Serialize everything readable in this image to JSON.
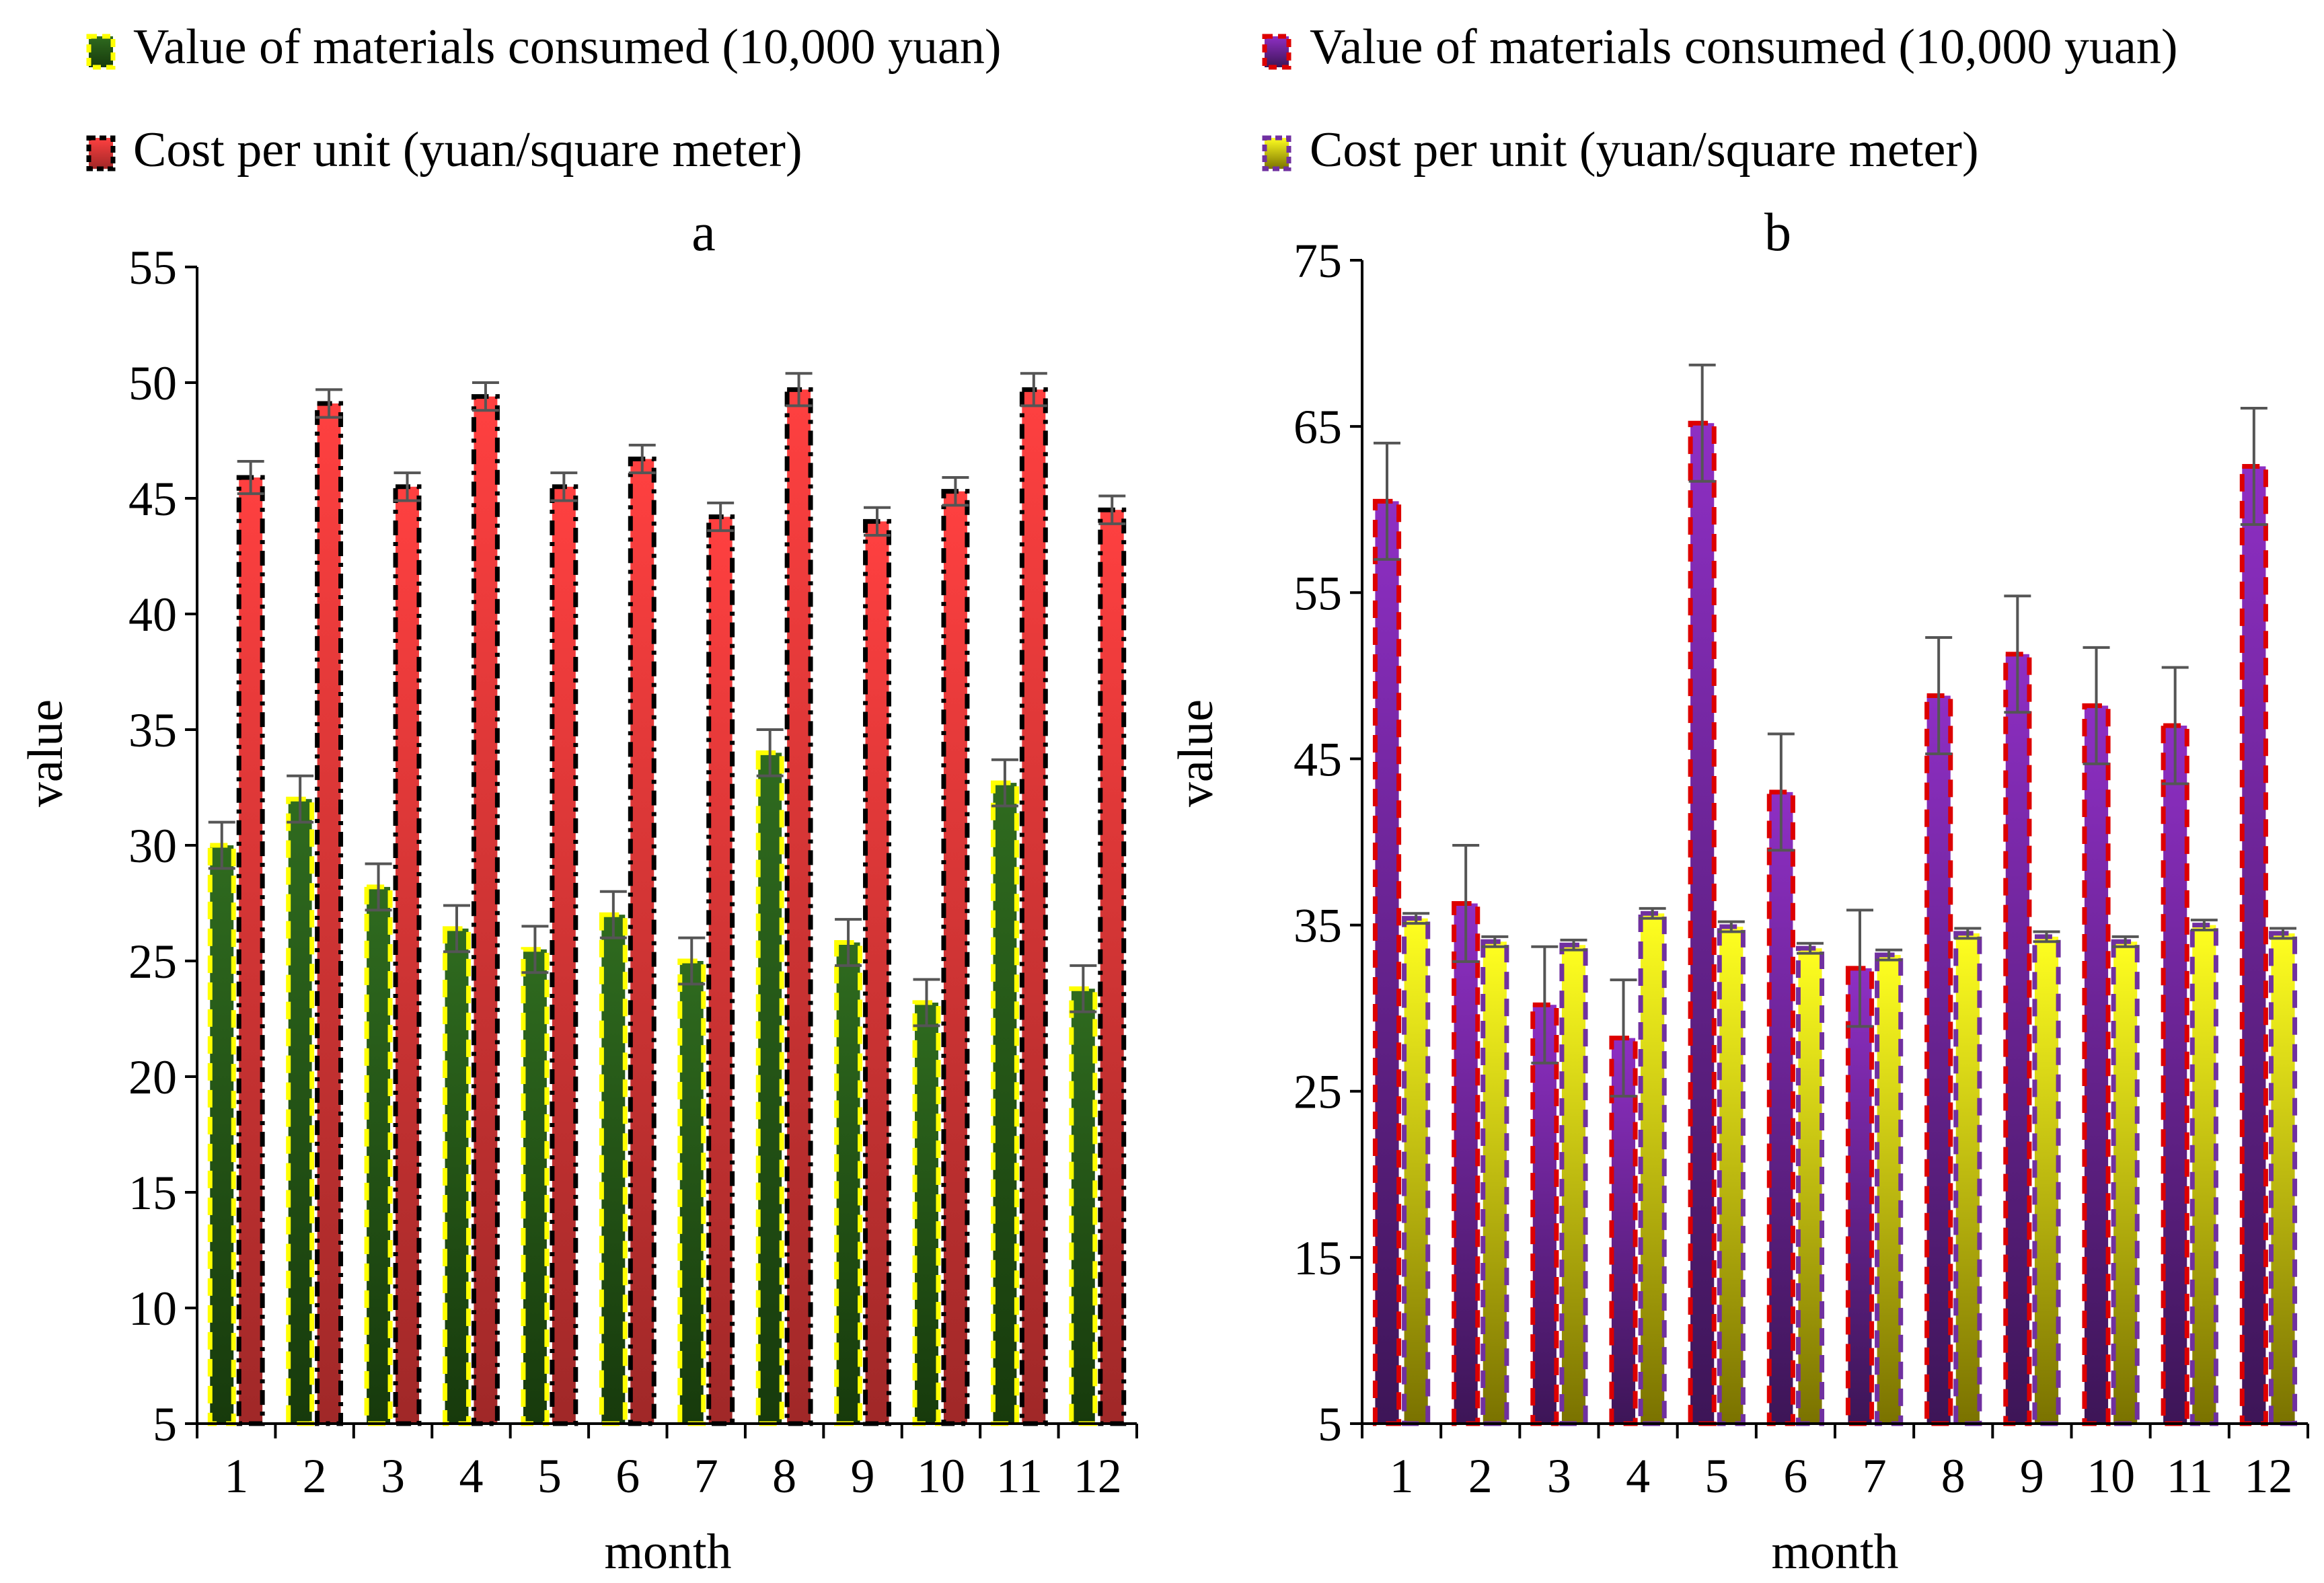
{
  "chart_data": [
    {
      "id": "a",
      "type": "bar",
      "title": "a",
      "xlabel": "month",
      "ylabel": "value",
      "ylim": [
        5,
        55
      ],
      "yticks": [
        5,
        10,
        15,
        20,
        25,
        30,
        35,
        40,
        45,
        50,
        55
      ],
      "categories": [
        "1",
        "2",
        "3",
        "4",
        "5",
        "6",
        "7",
        "8",
        "9",
        "10",
        "11",
        "12"
      ],
      "error_bars": true,
      "series": [
        {
          "name": "Value of materials consumed (10,000 yuan)",
          "values": [
            30.0,
            32.0,
            28.2,
            26.4,
            25.5,
            27.0,
            25.0,
            34.0,
            25.8,
            23.2,
            32.7,
            23.8
          ],
          "errors": [
            1.0,
            1.0,
            1.0,
            1.0,
            1.0,
            1.0,
            1.0,
            1.0,
            1.0,
            1.0,
            1.0,
            1.0
          ],
          "color_top": "#2f6b1f",
          "color_bottom": "#173a0c",
          "border": "#ffff00",
          "border_style": "dash"
        },
        {
          "name": "Cost per unit (yuan/square meter)",
          "values": [
            45.9,
            49.1,
            45.5,
            49.4,
            45.5,
            46.7,
            44.2,
            49.7,
            44.0,
            45.3,
            49.7,
            44.5
          ],
          "errors": [
            0.7,
            0.6,
            0.6,
            0.6,
            0.6,
            0.6,
            0.6,
            0.7,
            0.6,
            0.6,
            0.7,
            0.6
          ],
          "color_top": "#ff4040",
          "color_bottom": "#a02828",
          "border": "#000000",
          "border_style": "dashdot"
        }
      ],
      "legend_position": "top-left"
    },
    {
      "id": "b",
      "type": "bar",
      "title": "b",
      "xlabel": "month",
      "ylabel": "value",
      "ylim": [
        5,
        75
      ],
      "yticks": [
        5,
        15,
        25,
        35,
        45,
        55,
        65,
        75
      ],
      "categories": [
        "1",
        "2",
        "3",
        "4",
        "5",
        "6",
        "7",
        "8",
        "9",
        "10",
        "11",
        "12"
      ],
      "error_bars": true,
      "series": [
        {
          "name": "Value of materials consumed (10,000 yuan)",
          "values": [
            60.5,
            36.3,
            30.2,
            28.2,
            65.2,
            43.0,
            32.4,
            48.8,
            51.3,
            48.2,
            47.0,
            62.6
          ],
          "errors": [
            3.5,
            3.5,
            3.5,
            3.5,
            3.5,
            3.5,
            3.5,
            3.5,
            3.5,
            3.5,
            3.5,
            3.5
          ],
          "color_top": "#8e2fc4",
          "color_bottom": "#3d1557",
          "border": "#dd0000",
          "border_style": "dash"
        },
        {
          "name": "Cost per unit (yuan/square meter)",
          "values": [
            35.4,
            34.0,
            33.8,
            35.7,
            34.9,
            33.6,
            33.2,
            34.5,
            34.3,
            34.0,
            35.0,
            34.5
          ],
          "errors": [
            0.3,
            0.3,
            0.3,
            0.3,
            0.3,
            0.3,
            0.3,
            0.3,
            0.3,
            0.3,
            0.3,
            0.3
          ],
          "color_top": "#ffff20",
          "color_bottom": "#7a7200",
          "border": "#7030a0",
          "border_style": "dash"
        }
      ],
      "legend_position": "top-right"
    }
  ]
}
